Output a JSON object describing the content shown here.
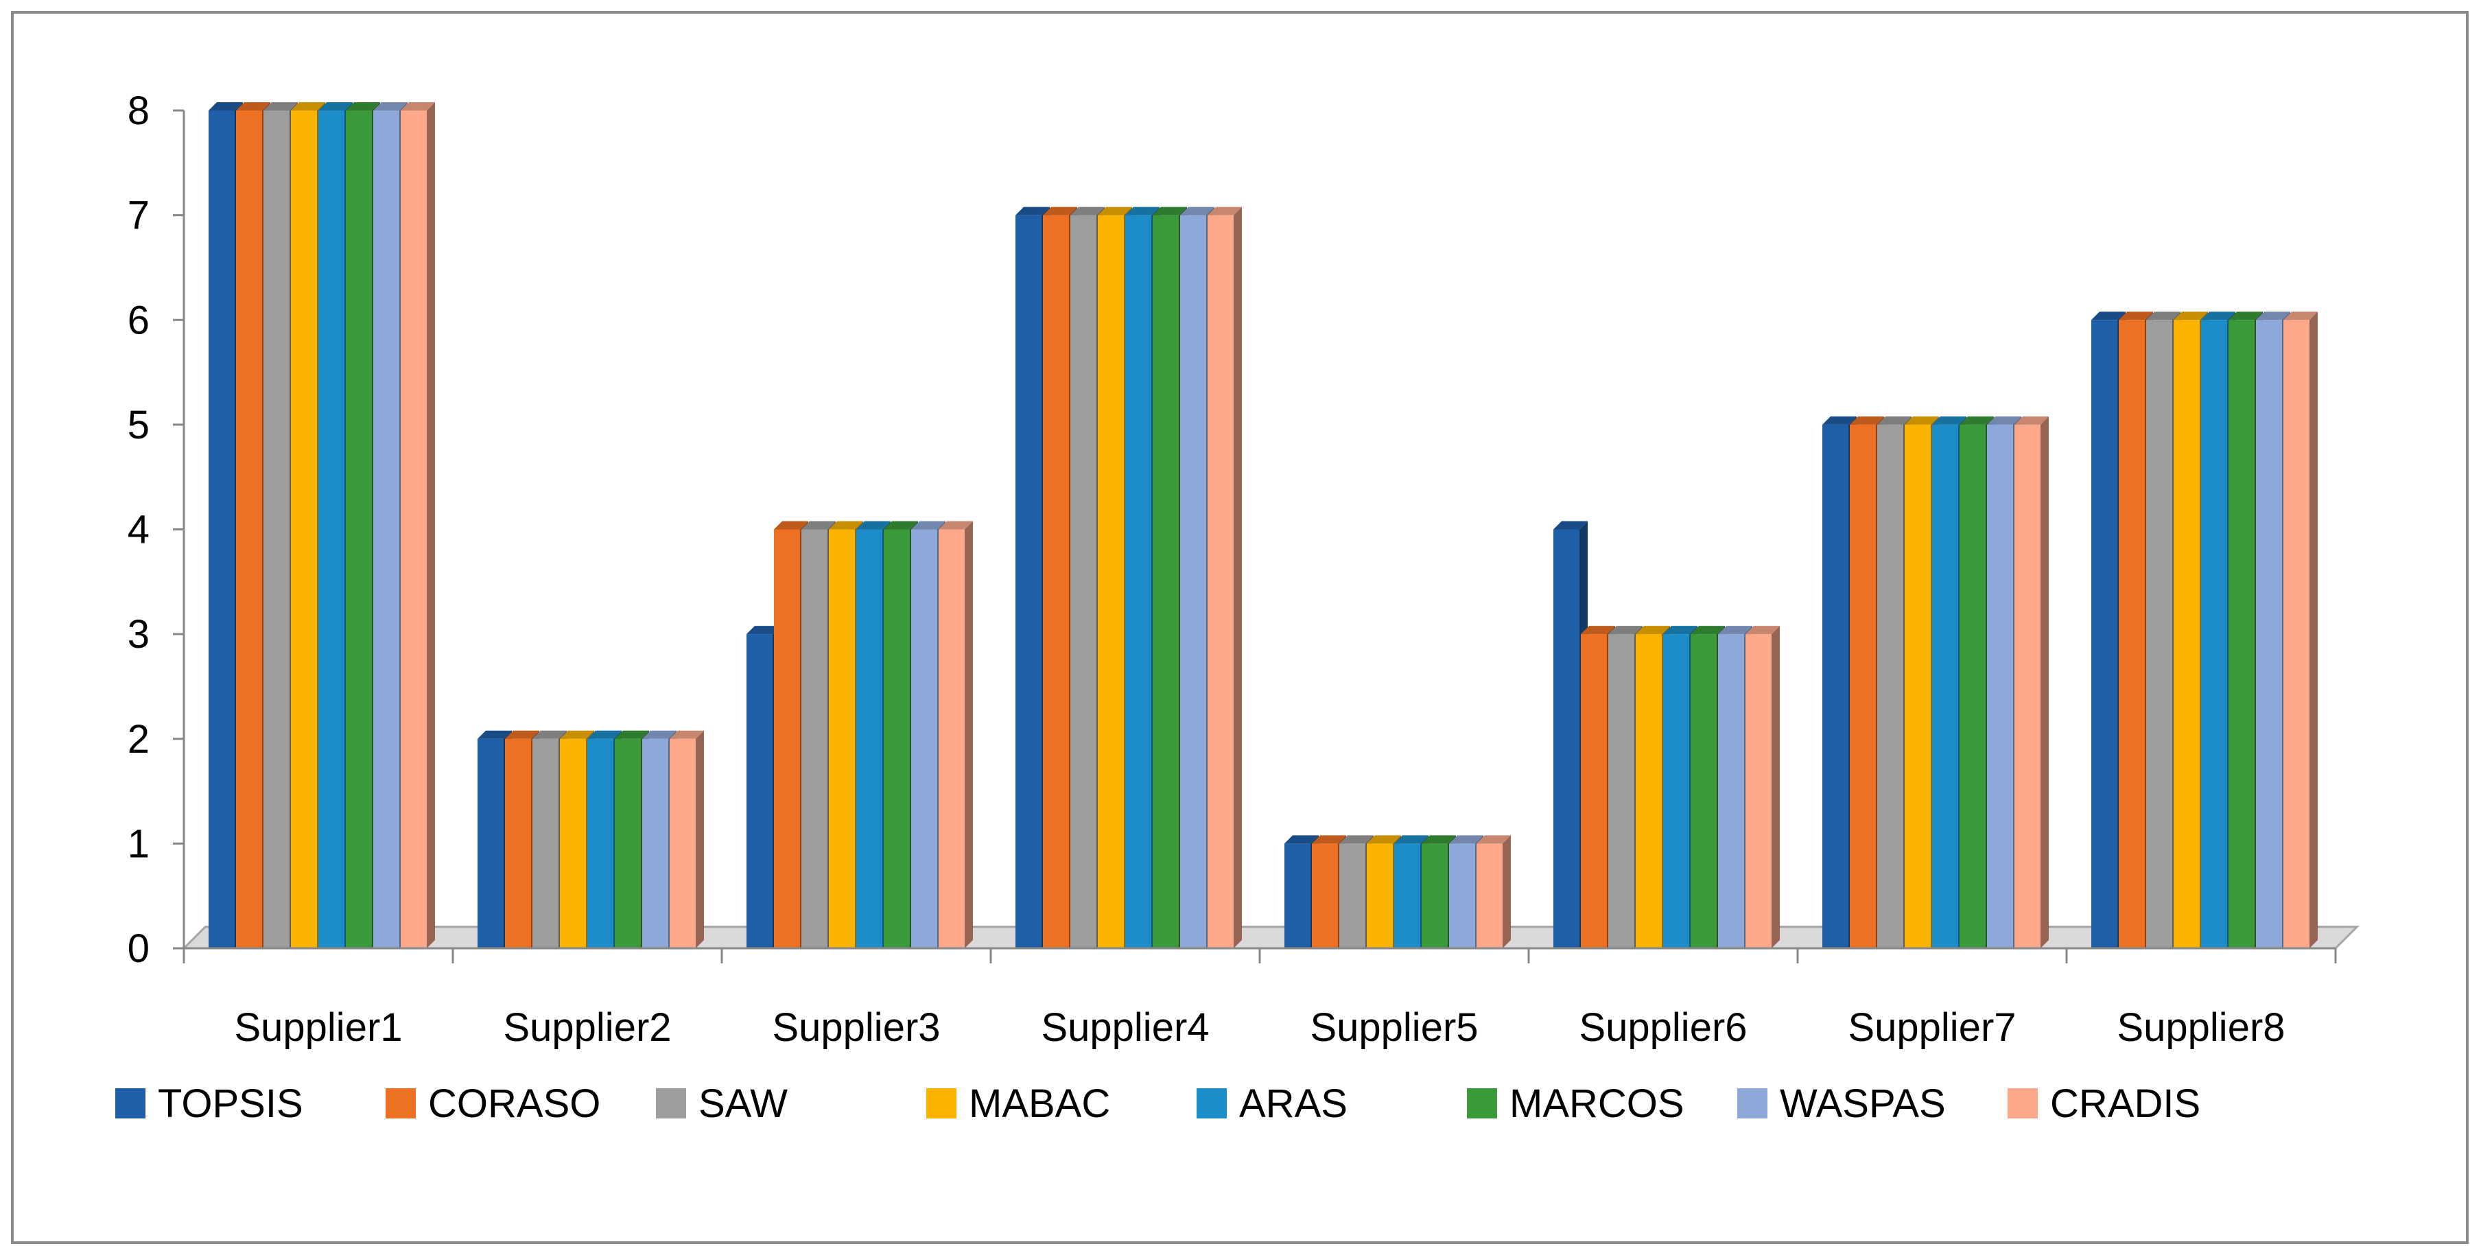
{
  "chart_data": {
    "type": "bar",
    "categories": [
      "Supplier1",
      "Supplier2",
      "Supplier3",
      "Supplier4",
      "Supplier5",
      "Supplier6",
      "Supplier7",
      "Supplier8"
    ],
    "series": [
      {
        "name": "TOPSIS",
        "color": "#1F5FA8",
        "values": [
          8,
          2,
          3,
          7,
          1,
          4,
          5,
          6
        ]
      },
      {
        "name": "CORASO",
        "color": "#EE7023",
        "values": [
          8,
          2,
          4,
          7,
          1,
          3,
          5,
          6
        ]
      },
      {
        "name": "SAW",
        "color": "#9D9D9D",
        "values": [
          8,
          2,
          4,
          7,
          1,
          3,
          5,
          6
        ]
      },
      {
        "name": "MABAC",
        "color": "#F9B300",
        "values": [
          8,
          2,
          4,
          7,
          1,
          3,
          5,
          6
        ]
      },
      {
        "name": "ARAS",
        "color": "#1C8DC8",
        "values": [
          8,
          2,
          4,
          7,
          1,
          3,
          5,
          6
        ]
      },
      {
        "name": "MARCOS",
        "color": "#3A9A3A",
        "values": [
          8,
          2,
          4,
          7,
          1,
          3,
          5,
          6
        ]
      },
      {
        "name": "WASPAS",
        "color": "#8EA8DA",
        "values": [
          8,
          2,
          4,
          7,
          1,
          3,
          5,
          6
        ]
      },
      {
        "name": "CRADIS",
        "color": "#FBA88B",
        "values": [
          8,
          2,
          4,
          7,
          1,
          3,
          5,
          6
        ]
      }
    ],
    "yticks": [
      "0",
      "1",
      "2",
      "3",
      "4",
      "5",
      "6",
      "7",
      "8"
    ],
    "ylim": [
      0,
      8
    ],
    "title": "",
    "xlabel": "",
    "ylabel": "",
    "grid": false,
    "legend_position": "bottom",
    "style": "3d-clustered-column"
  }
}
